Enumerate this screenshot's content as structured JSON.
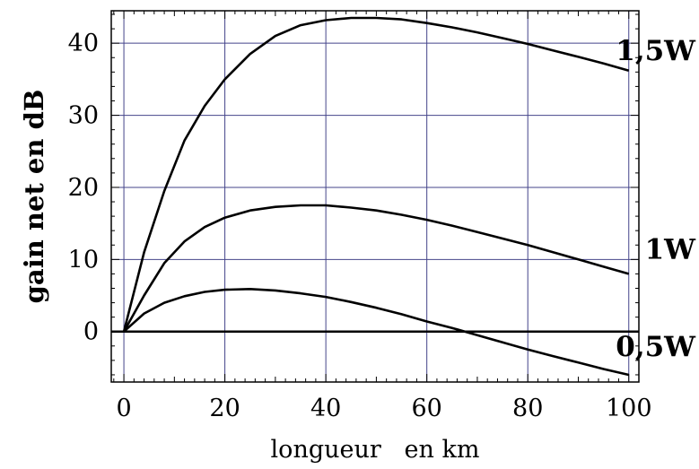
{
  "chart_data": {
    "type": "line",
    "xlabel": "longueur   en km",
    "ylabel": "gain net en dB",
    "xlim": [
      -2.5,
      102
    ],
    "ylim": [
      -7,
      44.5
    ],
    "xticks": [
      0,
      20,
      40,
      60,
      80,
      100
    ],
    "yticks": [
      0,
      10,
      20,
      30,
      40
    ],
    "grid": true,
    "zero_line": true,
    "series": [
      {
        "name": "1,5W",
        "label_y": 39,
        "x": [
          0,
          4,
          8,
          12,
          16,
          20,
          25,
          30,
          35,
          40,
          45,
          50,
          55,
          60,
          65,
          70,
          75,
          80,
          85,
          90,
          95,
          100
        ],
        "y": [
          0,
          11,
          19.5,
          26.5,
          31.3,
          35,
          38.5,
          41,
          42.5,
          43.2,
          43.5,
          43.5,
          43.3,
          42.8,
          42.2,
          41.5,
          40.7,
          39.9,
          39,
          38.1,
          37.2,
          36.2
        ]
      },
      {
        "name": "1W",
        "label_y": 11.5,
        "x": [
          0,
          4,
          8,
          12,
          16,
          20,
          25,
          30,
          35,
          40,
          45,
          50,
          55,
          60,
          65,
          70,
          75,
          80,
          85,
          90,
          95,
          100
        ],
        "y": [
          0,
          5,
          9.5,
          12.5,
          14.5,
          15.8,
          16.8,
          17.3,
          17.5,
          17.5,
          17.2,
          16.8,
          16.2,
          15.5,
          14.7,
          13.8,
          12.9,
          12,
          11,
          10,
          9,
          8
        ]
      },
      {
        "name": "0,5W",
        "label_y": -2,
        "x": [
          0,
          4,
          8,
          12,
          16,
          20,
          25,
          30,
          35,
          40,
          45,
          50,
          55,
          60,
          65,
          70,
          75,
          80,
          85,
          90,
          95,
          100
        ],
        "y": [
          0,
          2.5,
          4,
          4.9,
          5.5,
          5.8,
          5.9,
          5.7,
          5.3,
          4.8,
          4.1,
          3.3,
          2.4,
          1.4,
          0.5,
          -0.5,
          -1.5,
          -2.5,
          -3.4,
          -4.3,
          -5.2,
          -6
        ]
      }
    ]
  }
}
